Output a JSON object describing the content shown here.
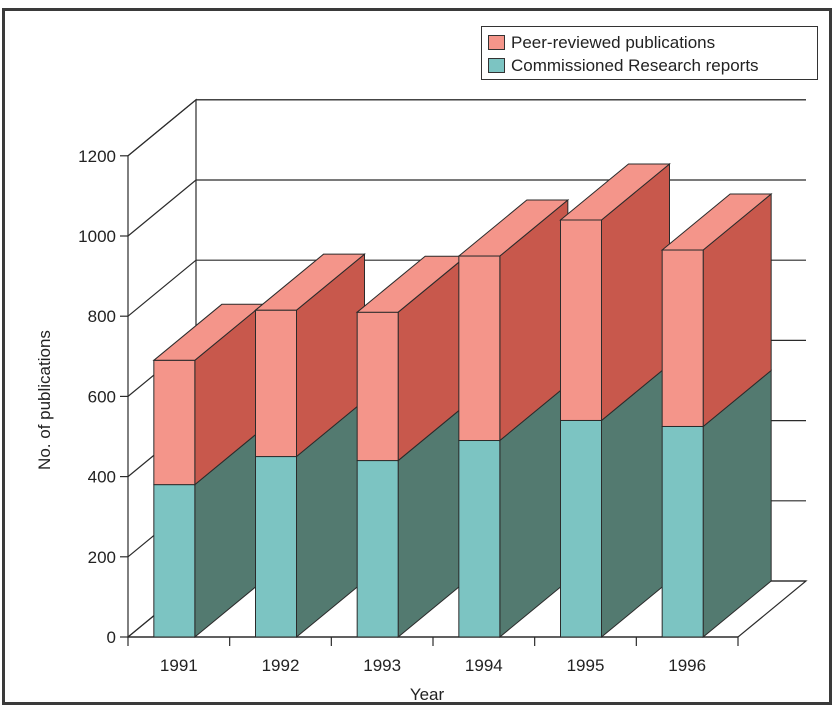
{
  "chart_data": {
    "type": "bar",
    "stacked": true,
    "three_d": true,
    "categories": [
      "1991",
      "1992",
      "1993",
      "1994",
      "1995",
      "1996"
    ],
    "series": [
      {
        "name": "Commissioned Research reports",
        "values": [
          380,
          450,
          440,
          490,
          540,
          525
        ],
        "front_color": "#7cc4c2",
        "side_color": "#537a70"
      },
      {
        "name": "Peer-reviewed publications",
        "values": [
          310,
          365,
          370,
          460,
          500,
          440
        ],
        "front_color": "#f4958a",
        "side_color": "#c8584c"
      }
    ],
    "xlabel": "Year",
    "ylabel": "No. of publications",
    "ylim": [
      0,
      1200
    ],
    "yticks": [
      "0",
      "200",
      "400",
      "600",
      "800",
      "1000",
      "1200"
    ],
    "grid": true,
    "legend": "top-right"
  }
}
